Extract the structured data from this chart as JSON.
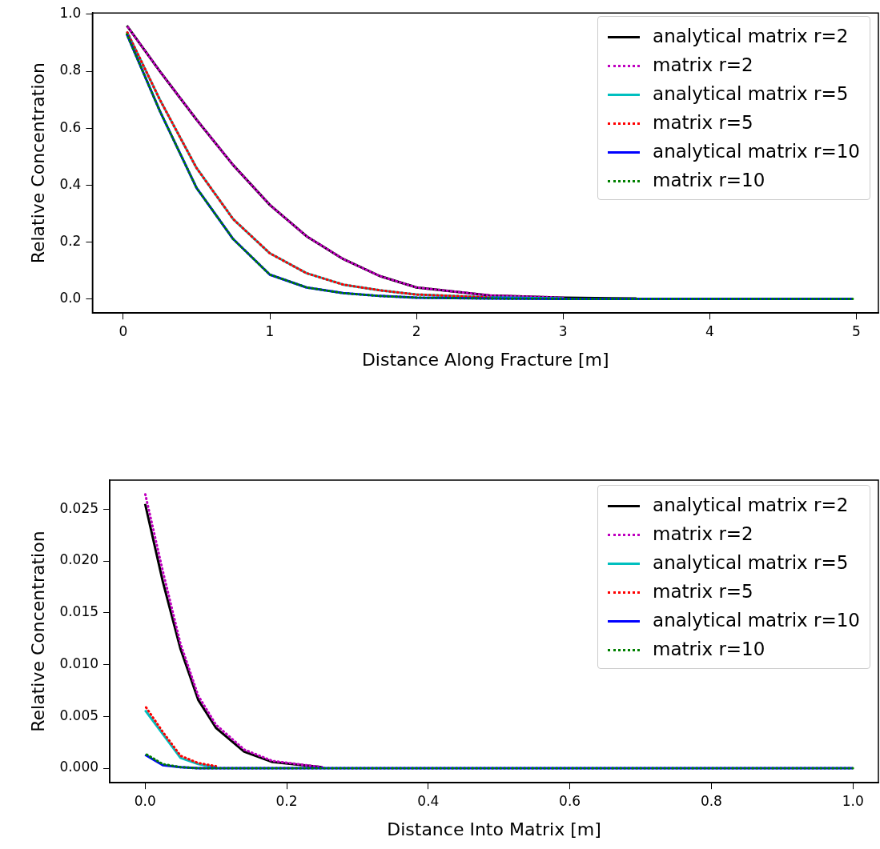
{
  "chart_data": [
    {
      "type": "line",
      "xlabel": "Distance Along Fracture [m]",
      "ylabel": "Relative Concentration",
      "xlim": [
        -0.21,
        5.15
      ],
      "ylim": [
        -0.05,
        1.005
      ],
      "xticks": [
        0,
        1,
        2,
        3,
        4,
        5
      ],
      "yticks": [
        {
          "value": 0,
          "label": "0.0"
        },
        0.2,
        0.4,
        0.6,
        0.8,
        {
          "value": 1,
          "label": "1.0"
        }
      ],
      "grid": false,
      "legend": "top right",
      "marker": "none",
      "x": [
        0.025,
        0.25,
        0.5,
        0.75,
        1,
        1.25,
        1.5,
        1.75,
        2,
        2.5,
        3,
        3.5,
        4,
        4.975
      ],
      "series": [
        {
          "name": "analytical matrix r=2",
          "color": "#000000",
          "line_style": "solid",
          "values": [
            0.96,
            0.8,
            0.63,
            0.47,
            0.33,
            0.22,
            0.14,
            0.08,
            0.04,
            0.012,
            0.004,
            0.001,
            null,
            null
          ]
        },
        {
          "name": "matrix r=2",
          "color": "#bf00bf",
          "line_style": "dotted",
          "values": [
            0.96,
            0.8,
            0.63,
            0.47,
            0.33,
            0.22,
            0.14,
            0.08,
            0.04,
            0.012,
            0.004,
            null,
            null,
            null
          ]
        },
        {
          "name": "analytical matrix r=5",
          "color": "#00bfbf",
          "line_style": "solid",
          "values": [
            0.94,
            0.7,
            0.46,
            0.28,
            0.16,
            0.09,
            0.05,
            0.03,
            0.015,
            0.005,
            0.001,
            null,
            null,
            null
          ]
        },
        {
          "name": "matrix r=5",
          "color": "#ff0000",
          "line_style": "dotted",
          "values": [
            0.94,
            0.7,
            0.46,
            0.28,
            0.16,
            0.09,
            0.05,
            0.03,
            0.015,
            0.005,
            null,
            null,
            null,
            null
          ]
        },
        {
          "name": "analytical matrix r=10",
          "color": "#0000ff",
          "line_style": "solid",
          "values": [
            0.93,
            0.66,
            0.39,
            0.21,
            0.085,
            0.04,
            0.02,
            0.01,
            0.004,
            0.001,
            0,
            0,
            0,
            0
          ]
        },
        {
          "name": "matrix r=10",
          "color": "#008000",
          "line_style": "dotted",
          "values": [
            0.93,
            0.66,
            0.39,
            0.21,
            0.085,
            0.04,
            0.02,
            0.01,
            0.004,
            0.001,
            0,
            0,
            0,
            0
          ]
        }
      ]
    },
    {
      "type": "line",
      "xlabel": "Distance Into Matrix [m]",
      "ylabel": "Relative Concentration",
      "xlim": [
        -0.05,
        1.036
      ],
      "ylim": [
        -0.0014,
        0.0278
      ],
      "xticks": [
        {
          "value": 0,
          "label": "0.0"
        },
        0.2,
        0.4,
        0.6,
        0.8,
        {
          "value": 1,
          "label": "1.0"
        }
      ],
      "yticks": [
        {
          "value": 0,
          "label": "0.000"
        },
        {
          "value": 0.005,
          "label": "0.005"
        },
        {
          "value": 0.01,
          "label": "0.010"
        },
        {
          "value": 0.015,
          "label": "0.015"
        },
        {
          "value": 0.02,
          "label": "0.020"
        },
        {
          "value": 0.025,
          "label": "0.025"
        }
      ],
      "grid": false,
      "legend": "top right",
      "marker": "none",
      "x": [
        0,
        0.025,
        0.05,
        0.075,
        0.1,
        0.14,
        0.18,
        0.25,
        0.3,
        0.5,
        1
      ],
      "series": [
        {
          "name": "analytical matrix r=2",
          "color": "#000000",
          "line_style": "solid",
          "values": [
            0.0255,
            0.018,
            0.0115,
            0.0066,
            0.0039,
            0.0016,
            0.0006,
            0.0001,
            null,
            null,
            null
          ]
        },
        {
          "name": "matrix r=2",
          "color": "#bf00bf",
          "line_style": "dotted",
          "values": [
            0.0265,
            0.019,
            0.012,
            0.007,
            0.0042,
            0.0018,
            0.0007,
            0.0001,
            null,
            null,
            null
          ]
        },
        {
          "name": "analytical matrix r=5",
          "color": "#00bfbf",
          "line_style": "solid",
          "values": [
            0.0056,
            0.0033,
            0.001,
            0.0004,
            0.0001,
            null,
            null,
            null,
            null,
            null,
            null
          ]
        },
        {
          "name": "matrix r=5",
          "color": "#ff0000",
          "line_style": "dotted",
          "values": [
            0.006,
            0.0035,
            0.0012,
            0.0005,
            0.0002,
            null,
            null,
            null,
            null,
            null,
            null
          ]
        },
        {
          "name": "analytical matrix r=10",
          "color": "#0000ff",
          "line_style": "solid",
          "values": [
            0.0013,
            0.0003,
            0.0001,
            0,
            0,
            0,
            0,
            0,
            0,
            0,
            0
          ]
        },
        {
          "name": "matrix r=10",
          "color": "#008000",
          "line_style": "dotted",
          "values": [
            0.0014,
            0.0004,
            0.0001,
            0,
            0,
            0,
            0,
            0,
            0,
            0,
            0
          ]
        }
      ]
    }
  ]
}
